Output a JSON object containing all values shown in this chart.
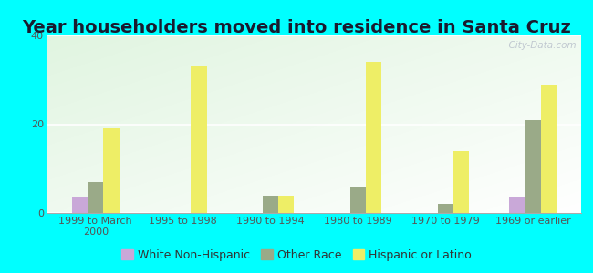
{
  "title": "Year householders moved into residence in Santa Cruz",
  "categories": [
    "1999 to March\n2000",
    "1995 to 1998",
    "1990 to 1994",
    "1980 to 1989",
    "1970 to 1979",
    "1969 or earlier"
  ],
  "white_non_hispanic": [
    3.5,
    0,
    0,
    0,
    0,
    3.5
  ],
  "other_race": [
    7,
    0,
    4,
    6,
    2,
    21
  ],
  "hispanic_or_latino": [
    19,
    33,
    4,
    34,
    14,
    29
  ],
  "white_color": "#c9a8d8",
  "other_color": "#9aaa88",
  "hispanic_color": "#eeee66",
  "background_color": "#00FFFF",
  "ylim": [
    0,
    40
  ],
  "yticks": [
    0,
    20,
    40
  ],
  "bar_width": 0.18,
  "title_fontsize": 14,
  "tick_fontsize": 8,
  "legend_fontsize": 9,
  "watermark": "  City-Data.com"
}
